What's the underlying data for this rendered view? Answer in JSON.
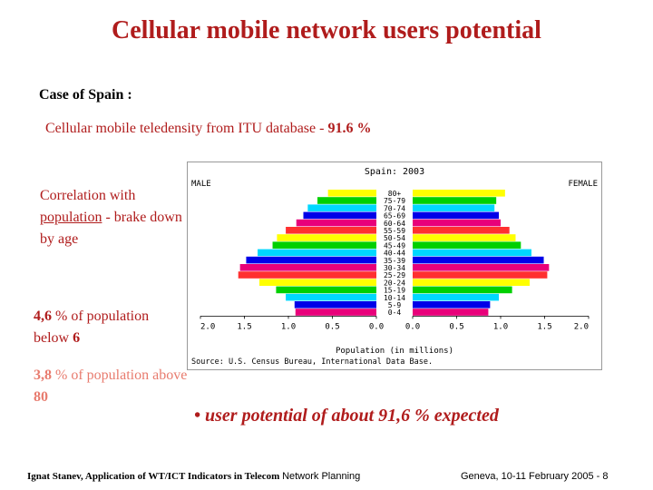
{
  "slide": {
    "title": "Cellular mobile network users potential",
    "case": "Case of Spain :",
    "teledensity_prefix": "Cellular mobile teledensity from ITU database - ",
    "teledensity_value": "91.6 %",
    "correlation_a": "Correlation with ",
    "correlation_b": "population",
    "correlation_c": " - brake down by age",
    "below6_value": "4,6",
    "below6_text": " % of population below ",
    "below6_num": "6",
    "above80_value": "3,8",
    "above80_text": " % of population above ",
    "above80_num": "80",
    "bullet": "• user potential of  about 91,6 % expected",
    "footer_left_bold": "Ignat Stanev, Application of WT/ICT Indicators in Telecom ",
    "footer_left_sans": "Network Planning",
    "footer_right": "Geneva, 10-11 February 2005 - 8"
  },
  "chart_data": {
    "type": "bar",
    "title": "Spain: 2003",
    "left_label": "MALE",
    "right_label": "FEMALE",
    "xlabel": "Population (in millions)",
    "source": "Source: U.S. Census Bureau, International Data Base.",
    "x_ticks": [
      "2.0",
      "1.5",
      "1.0",
      "0.5",
      "0.0",
      "0.0",
      "0.5",
      "1.0",
      "1.5",
      "2.0"
    ],
    "xlim": [
      0,
      2.0
    ],
    "categories": [
      "80+",
      "75-79",
      "70-74",
      "65-69",
      "60-64",
      "55-59",
      "50-54",
      "45-49",
      "40-44",
      "35-39",
      "30-34",
      "25-29",
      "20-24",
      "15-19",
      "10-14",
      "5-9",
      "0-4"
    ],
    "series": [
      {
        "name": "MALE",
        "values": [
          0.55,
          0.67,
          0.78,
          0.83,
          0.91,
          1.03,
          1.13,
          1.18,
          1.35,
          1.48,
          1.55,
          1.57,
          1.33,
          1.14,
          1.03,
          0.93,
          0.92
        ]
      },
      {
        "name": "FEMALE",
        "values": [
          1.05,
          0.95,
          0.93,
          0.98,
          1.0,
          1.1,
          1.17,
          1.23,
          1.35,
          1.49,
          1.55,
          1.53,
          1.33,
          1.13,
          0.98,
          0.88,
          0.86
        ]
      }
    ],
    "colors": [
      "#ffff00",
      "#00d000",
      "#00d8ff",
      "#0000e8",
      "#e8007a",
      "#ff3030",
      "#ffff00",
      "#00d000",
      "#00d8ff",
      "#0000e8",
      "#e8007a",
      "#ff3030",
      "#ffff00",
      "#00d000",
      "#00d8ff",
      "#0000e8",
      "#e8007a"
    ]
  }
}
